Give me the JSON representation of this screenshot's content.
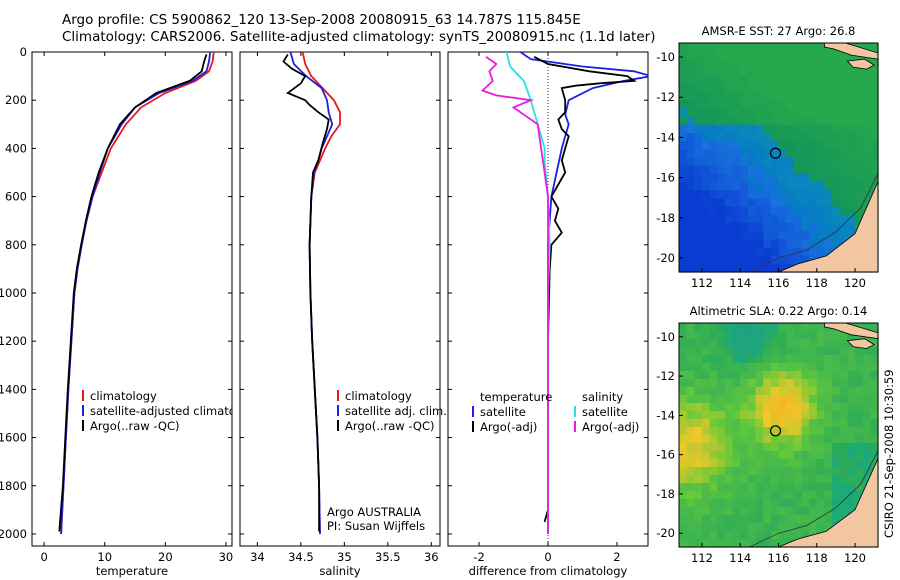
{
  "header": {
    "line1": "Argo profile: CS 5900862_120 13-Sep-2008 20080915_63 14.787S 115.845E",
    "line2": "Climatology: CARS2006. Satellite-adjusted climatology: synTS_20080915.nc (1.1d later)"
  },
  "stamp": "CSIRO 21-Sep-2008 10:30:59",
  "colors": {
    "climatology": "#e41a1c",
    "satellite": "#1f1fe0",
    "argo": "#000000",
    "argo_adj_sal": "#e81ce0",
    "sat_sal": "#2fe0e0",
    "land": "#f1c6a0"
  },
  "depth_axis": {
    "ylim": [
      0,
      2050
    ],
    "ticks": [
      0,
      200,
      400,
      600,
      800,
      1000,
      1200,
      1400,
      1600,
      1800,
      2000
    ]
  },
  "chart_data": [
    {
      "type": "line",
      "id": "temperature",
      "xlabel": "temperature",
      "xlim": [
        -2,
        31
      ],
      "xticks": [
        0,
        10,
        20,
        30
      ],
      "legend": [
        "climatology",
        "satellite-adjusted climatology",
        "Argo(..raw -QC)"
      ],
      "series": [
        {
          "name": "climatology",
          "color_key": "climatology",
          "points": [
            [
              28.0,
              0
            ],
            [
              27.8,
              40
            ],
            [
              27.2,
              80
            ],
            [
              25.0,
              120
            ],
            [
              20.0,
              170
            ],
            [
              16.0,
              230
            ],
            [
              13.5,
              300
            ],
            [
              11.0,
              400
            ],
            [
              9.5,
              500
            ],
            [
              8.0,
              600
            ],
            [
              7.0,
              700
            ],
            [
              6.2,
              800
            ],
            [
              5.5,
              900
            ],
            [
              5.0,
              1000
            ],
            [
              4.5,
              1200
            ],
            [
              4.0,
              1400
            ],
            [
              3.6,
              1600
            ],
            [
              3.2,
              1800
            ],
            [
              2.8,
              2000
            ]
          ]
        },
        {
          "name": "satellite-adjusted climatology",
          "color_key": "satellite",
          "points": [
            [
              27.4,
              0
            ],
            [
              27.2,
              40
            ],
            [
              26.8,
              80
            ],
            [
              24.5,
              120
            ],
            [
              19.0,
              170
            ],
            [
              15.0,
              230
            ],
            [
              12.8,
              300
            ],
            [
              10.5,
              400
            ],
            [
              9.2,
              500
            ],
            [
              8.0,
              600
            ],
            [
              7.0,
              700
            ],
            [
              6.2,
              800
            ],
            [
              5.5,
              900
            ],
            [
              5.0,
              1000
            ],
            [
              4.5,
              1200
            ],
            [
              4.0,
              1400
            ],
            [
              3.6,
              1600
            ],
            [
              3.2,
              1800
            ],
            [
              2.8,
              2000
            ]
          ]
        },
        {
          "name": "Argo(..raw -QC)",
          "color_key": "argo",
          "points": [
            [
              26.8,
              10
            ],
            [
              26.4,
              40
            ],
            [
              26.0,
              80
            ],
            [
              24.0,
              120
            ],
            [
              18.5,
              170
            ],
            [
              15.0,
              230
            ],
            [
              12.5,
              300
            ],
            [
              10.5,
              400
            ],
            [
              9.0,
              500
            ],
            [
              7.8,
              600
            ],
            [
              6.9,
              700
            ],
            [
              6.1,
              800
            ],
            [
              5.4,
              900
            ],
            [
              4.9,
              1000
            ],
            [
              4.4,
              1200
            ],
            [
              3.9,
              1400
            ],
            [
              3.5,
              1600
            ],
            [
              3.1,
              1800
            ],
            [
              2.5,
              1990
            ]
          ]
        }
      ]
    },
    {
      "type": "line",
      "id": "salinity",
      "xlabel": "salinity",
      "xlim": [
        33.8,
        36.1
      ],
      "xticks": [
        34,
        34.5,
        35,
        35.5,
        36
      ],
      "legend": [
        "climatology",
        "satellite adj. clim.",
        "Argo(..raw -QC)"
      ],
      "annotation": [
        "Argo AUSTRALIA",
        "PI: Susan Wijffels"
      ],
      "series": [
        {
          "name": "climatology",
          "color_key": "climatology",
          "points": [
            [
              34.52,
              0
            ],
            [
              34.55,
              50
            ],
            [
              34.62,
              100
            ],
            [
              34.75,
              150
            ],
            [
              34.88,
              200
            ],
            [
              34.95,
              250
            ],
            [
              34.95,
              300
            ],
            [
              34.85,
              350
            ],
            [
              34.78,
              400
            ],
            [
              34.72,
              450
            ],
            [
              34.66,
              500
            ],
            [
              34.62,
              600
            ],
            [
              34.6,
              800
            ],
            [
              34.61,
              1000
            ],
            [
              34.63,
              1200
            ],
            [
              34.66,
              1400
            ],
            [
              34.69,
              1600
            ],
            [
              34.71,
              1800
            ],
            [
              34.72,
              2000
            ]
          ]
        },
        {
          "name": "satellite adj. clim.",
          "color_key": "satellite",
          "points": [
            [
              34.38,
              0
            ],
            [
              34.42,
              50
            ],
            [
              34.56,
              100
            ],
            [
              34.74,
              150
            ],
            [
              34.8,
              200
            ],
            [
              34.82,
              250
            ],
            [
              34.86,
              300
            ],
            [
              34.8,
              350
            ],
            [
              34.74,
              400
            ],
            [
              34.7,
              450
            ],
            [
              34.65,
              500
            ],
            [
              34.62,
              600
            ],
            [
              34.6,
              800
            ],
            [
              34.61,
              1000
            ],
            [
              34.63,
              1200
            ],
            [
              34.66,
              1400
            ],
            [
              34.69,
              1600
            ],
            [
              34.71,
              1800
            ],
            [
              34.72,
              2000
            ]
          ]
        },
        {
          "name": "Argo(..raw -QC)",
          "color_key": "argo",
          "points": [
            [
              34.35,
              10
            ],
            [
              34.3,
              40
            ],
            [
              34.4,
              70
            ],
            [
              34.55,
              100
            ],
            [
              34.5,
              130
            ],
            [
              34.35,
              170
            ],
            [
              34.55,
              200
            ],
            [
              34.6,
              220
            ],
            [
              34.7,
              250
            ],
            [
              34.82,
              280
            ],
            [
              34.8,
              320
            ],
            [
              34.75,
              380
            ],
            [
              34.7,
              450
            ],
            [
              34.64,
              500
            ],
            [
              34.62,
              600
            ],
            [
              34.6,
              800
            ],
            [
              34.61,
              1000
            ],
            [
              34.63,
              1200
            ],
            [
              34.66,
              1400
            ],
            [
              34.69,
              1600
            ],
            [
              34.71,
              1800
            ],
            [
              34.71,
              1990
            ]
          ]
        }
      ]
    },
    {
      "type": "line",
      "id": "difference",
      "xlabel": "difference from climatology",
      "xlim": [
        -2.9,
        2.9
      ],
      "xticks": [
        -2,
        0,
        2
      ],
      "zero_line": true,
      "legend_groups": [
        {
          "title": "temperature",
          "items": [
            "satellite",
            "Argo(-adj)"
          ]
        },
        {
          "title": "salinity",
          "items": [
            "satellite",
            "Argo(-adj)"
          ]
        }
      ],
      "series": [
        {
          "name": "temperature satellite",
          "color_key": "satellite",
          "points": [
            [
              -0.8,
              0
            ],
            [
              -0.5,
              30
            ],
            [
              1.0,
              60
            ],
            [
              2.5,
              80
            ],
            [
              3.0,
              100
            ],
            [
              2.2,
              120
            ],
            [
              1.3,
              150
            ],
            [
              0.6,
              200
            ],
            [
              0.5,
              260
            ],
            [
              0.6,
              300
            ],
            [
              0.5,
              350
            ],
            [
              0.4,
              400
            ],
            [
              0.25,
              500
            ],
            [
              0.1,
              600
            ],
            [
              0.05,
              700
            ],
            [
              0,
              800
            ],
            [
              0,
              1200
            ],
            [
              0,
              2000
            ]
          ]
        },
        {
          "name": "temperature Argo(-adj)",
          "color_key": "argo",
          "points": [
            [
              -0.4,
              20
            ],
            [
              0,
              50
            ],
            [
              1.2,
              80
            ],
            [
              2.3,
              100
            ],
            [
              2.5,
              120
            ],
            [
              1.5,
              130
            ],
            [
              0.8,
              140
            ],
            [
              0.4,
              150
            ],
            [
              0.5,
              200
            ],
            [
              0.5,
              250
            ],
            [
              0.3,
              280
            ],
            [
              0.4,
              320
            ],
            [
              0.6,
              350
            ],
            [
              0.5,
              400
            ],
            [
              0.4,
              450
            ],
            [
              0.5,
              500
            ],
            [
              0.3,
              550
            ],
            [
              0.1,
              600
            ],
            [
              0.3,
              650
            ],
            [
              0.2,
              700
            ],
            [
              0.4,
              750
            ],
            [
              0.1,
              800
            ],
            [
              0.05,
              900
            ],
            [
              0,
              1200
            ],
            [
              0,
              1900
            ],
            [
              -0.1,
              1950
            ]
          ]
        },
        {
          "name": "salinity satellite",
          "color_key": "sat_sal",
          "points": [
            [
              -1.2,
              0
            ],
            [
              -1.1,
              60
            ],
            [
              -0.7,
              120
            ],
            [
              -0.5,
              200
            ],
            [
              -0.3,
              300
            ],
            [
              -0.1,
              400
            ],
            [
              -0.1,
              450
            ],
            [
              0,
              600
            ],
            [
              0.05,
              800
            ],
            [
              0,
              1000
            ],
            [
              0,
              2000
            ]
          ]
        },
        {
          "name": "salinity Argo(-adj)",
          "color_key": "argo_adj_sal",
          "points": [
            [
              -1.8,
              20
            ],
            [
              -1.5,
              50
            ],
            [
              -1.7,
              80
            ],
            [
              -1.6,
              120
            ],
            [
              -1.9,
              160
            ],
            [
              -1.5,
              180
            ],
            [
              -0.5,
              200
            ],
            [
              -1.0,
              230
            ],
            [
              -0.7,
              260
            ],
            [
              -0.3,
              300
            ],
            [
              -0.2,
              400
            ],
            [
              -0.1,
              500
            ],
            [
              0,
              600
            ],
            [
              0,
              2000
            ]
          ]
        }
      ]
    },
    {
      "type": "heatmap",
      "id": "sst_map",
      "title": "AMSR-E SST: 27 Argo: 26.8",
      "xticks": [
        112,
        114,
        116,
        118,
        120
      ],
      "yticks": [
        -10,
        -12,
        -14,
        -16,
        -18,
        -20
      ],
      "xlim": [
        110.8,
        121.2
      ],
      "ylim": [
        -20.7,
        -9.3
      ],
      "marker": {
        "lon": 115.845,
        "lat": -14.787
      }
    },
    {
      "type": "heatmap",
      "id": "sla_map",
      "title": "Altimetric SLA: 0.22 Argo: 0.14",
      "xticks": [
        112,
        114,
        116,
        118,
        120
      ],
      "yticks": [
        -10,
        -12,
        -14,
        -16,
        -18,
        -20
      ],
      "xlim": [
        110.8,
        121.2
      ],
      "ylim": [
        -20.7,
        -9.3
      ],
      "marker": {
        "lon": 115.845,
        "lat": -14.787
      }
    }
  ]
}
